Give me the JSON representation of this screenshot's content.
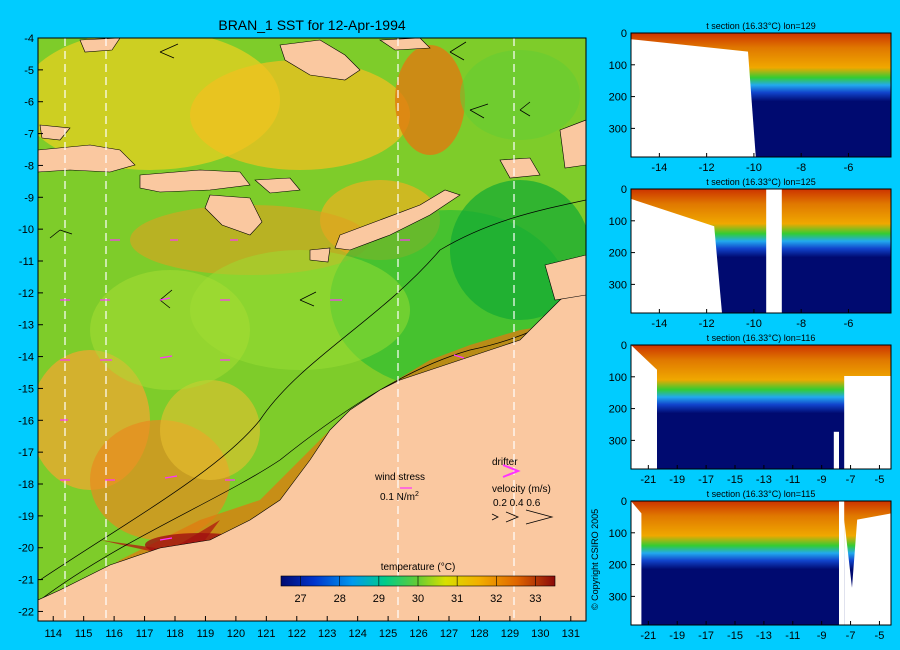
{
  "main_map": {
    "title": "BRAN_1 SST for 12-Apr-1994",
    "lat_ticks": [
      "-4",
      "-5",
      "-6",
      "-7",
      "-8",
      "-9",
      "-10",
      "-11",
      "-12",
      "-13",
      "-14",
      "-15",
      "-16",
      "-17",
      "-18",
      "-19",
      "-20",
      "-21",
      "-22"
    ],
    "lon_ticks": [
      "114",
      "115",
      "116",
      "117",
      "118",
      "119",
      "120",
      "121",
      "122",
      "123",
      "124",
      "125",
      "126",
      "127",
      "128",
      "129",
      "130",
      "131"
    ],
    "wind_stress_label": "wind stress",
    "wind_stress_scale": "0.1 N/m",
    "wind_stress_sup": "2",
    "drifter_label": "drifter",
    "velocity_label": "velocity (m/s)",
    "velocity_scale": "0.2 0.4 0.6",
    "colorbar_title": "temperature (°C)",
    "colorbar_ticks": [
      "27",
      "28",
      "29",
      "30",
      "31",
      "32",
      "33"
    ],
    "colors": {
      "land": "#fac8a0",
      "background": "#00ccff",
      "vector": "#ff33ff"
    }
  },
  "chart_data": [
    {
      "type": "heatmap",
      "title": "BRAN_1 SST for 12-Apr-1994",
      "xlabel": "",
      "ylabel": "",
      "xlim": [
        113.5,
        131.5
      ],
      "ylim": [
        -22.3,
        -4
      ],
      "colorbar_range": [
        26.5,
        33.5
      ],
      "colorbar_label": "temperature (°C)",
      "section_lines_lon": [
        114.5,
        115.8,
        125.4,
        129.2
      ]
    },
    {
      "type": "heatmap",
      "title": "t section (16.33°C) lon=129",
      "xlabel": "",
      "ylabel": "",
      "xlim": [
        -15.2,
        -4.2
      ],
      "ylim": [
        390,
        0
      ],
      "x_ticks": [
        "-14",
        "-12",
        "-10",
        "-8",
        "-6"
      ],
      "y_ticks": [
        "0",
        "100",
        "200",
        "300"
      ]
    },
    {
      "type": "heatmap",
      "title": "t section (16.33°C) lon=125",
      "xlabel": "",
      "ylabel": "",
      "xlim": [
        -15.2,
        -4.2
      ],
      "ylim": [
        390,
        0
      ],
      "x_ticks": [
        "-14",
        "-12",
        "-10",
        "-8",
        "-6"
      ],
      "y_ticks": [
        "0",
        "100",
        "200",
        "300"
      ]
    },
    {
      "type": "heatmap",
      "title": "t section (16.33°C) lon=116",
      "xlabel": "",
      "ylabel": "",
      "xlim": [
        -22.2,
        -4.2
      ],
      "ylim": [
        390,
        0
      ],
      "x_ticks": [
        "-21",
        "-19",
        "-17",
        "-15",
        "-13",
        "-11",
        "-9",
        "-7",
        "-5"
      ],
      "y_ticks": [
        "0",
        "100",
        "200",
        "300"
      ]
    },
    {
      "type": "heatmap",
      "title": "t section (16.33°C) lon=115",
      "xlabel": "",
      "ylabel": "",
      "xlim": [
        -22.2,
        -4.2
      ],
      "ylim": [
        390,
        0
      ],
      "x_ticks": [
        "-21",
        "-19",
        "-17",
        "-15",
        "-13",
        "-11",
        "-9",
        "-7",
        "-5"
      ],
      "y_ticks": [
        "0",
        "100",
        "200",
        "300"
      ]
    }
  ],
  "copyright": "© Copyright CSIRO 2005"
}
